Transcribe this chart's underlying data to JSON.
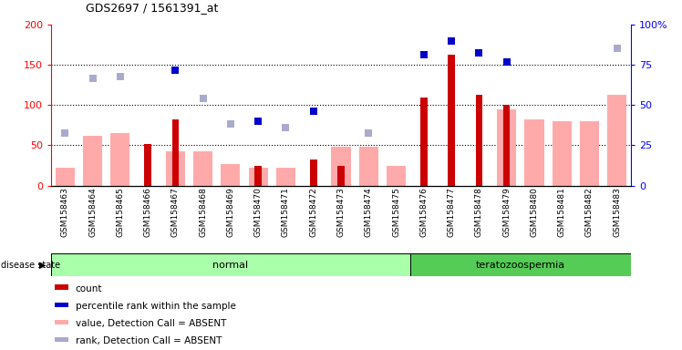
{
  "title": "GDS2697 / 1561391_at",
  "samples": [
    "GSM158463",
    "GSM158464",
    "GSM158465",
    "GSM158466",
    "GSM158467",
    "GSM158468",
    "GSM158469",
    "GSM158470",
    "GSM158471",
    "GSM158472",
    "GSM158473",
    "GSM158474",
    "GSM158475",
    "GSM158476",
    "GSM158477",
    "GSM158478",
    "GSM158479",
    "GSM158480",
    "GSM158481",
    "GSM158482",
    "GSM158483"
  ],
  "count": [
    0,
    0,
    0,
    52,
    82,
    0,
    0,
    24,
    0,
    32,
    24,
    0,
    0,
    109,
    162,
    113,
    100,
    0,
    0,
    0,
    0
  ],
  "percentile_rank": [
    null,
    null,
    null,
    null,
    143,
    null,
    null,
    80,
    null,
    92,
    null,
    null,
    null,
    163,
    180,
    165,
    153,
    null,
    null,
    null,
    null
  ],
  "value_absent": [
    22,
    62,
    65,
    null,
    42,
    42,
    27,
    22,
    22,
    null,
    48,
    48,
    24,
    null,
    null,
    null,
    95,
    82,
    80,
    80,
    113
  ],
  "rank_absent": [
    65,
    133,
    135,
    null,
    null,
    108,
    76,
    null,
    72,
    null,
    null,
    65,
    null,
    null,
    null,
    null,
    null,
    null,
    null,
    null,
    170
  ],
  "group": [
    "normal",
    "normal",
    "normal",
    "normal",
    "normal",
    "normal",
    "normal",
    "normal",
    "normal",
    "normal",
    "normal",
    "normal",
    "normal",
    "teratozoospermia",
    "teratozoospermia",
    "teratozoospermia",
    "teratozoospermia",
    "teratozoospermia",
    "teratozoospermia",
    "teratozoospermia",
    "teratozoospermia"
  ],
  "ylim_left": [
    0,
    200
  ],
  "ylim_right": [
    0,
    100
  ],
  "yticks_left": [
    0,
    50,
    100,
    150,
    200
  ],
  "yticks_right": [
    0,
    25,
    50,
    75,
    100
  ],
  "ytick_labels_right": [
    "0",
    "25",
    "50",
    "75",
    "100%"
  ],
  "hlines": [
    50,
    100,
    150
  ],
  "color_count": "#cc0000",
  "color_percentile": "#0000cc",
  "color_value_absent": "#ffaaaa",
  "color_rank_absent": "#aaaacc",
  "color_normal_bg": "#aaffaa",
  "color_terato_bg": "#55cc55",
  "color_sample_bg": "#cccccc",
  "legend_items": [
    {
      "label": "count",
      "color": "#cc0000"
    },
    {
      "label": "percentile rank within the sample",
      "color": "#0000cc"
    },
    {
      "label": "value, Detection Call = ABSENT",
      "color": "#ffaaaa"
    },
    {
      "label": "rank, Detection Call = ABSENT",
      "color": "#aaaacc"
    }
  ]
}
